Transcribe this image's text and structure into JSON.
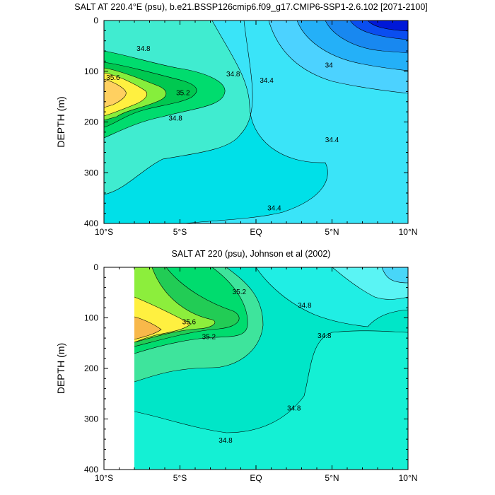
{
  "chart_data": [
    {
      "type": "contour",
      "title": "SALT AT 220.4°E (psu), b.e21.BSSP126cmip6.f09_g17.CMIP6-SSP1-2.6.102 [2071-2100]",
      "xlabel": "",
      "ylabel": "DEPTH (m)",
      "xlim": [
        -10,
        10
      ],
      "ylim": [
        400,
        0
      ],
      "x_ticks": [
        -10,
        -5,
        0,
        5,
        10
      ],
      "x_tick_labels": [
        "10°S",
        "5°S",
        "EQ",
        "5°N",
        "10°N"
      ],
      "y_ticks": [
        0,
        100,
        200,
        300,
        400
      ],
      "y_tick_labels": [
        "0",
        "100",
        "200",
        "300",
        "400"
      ],
      "contour_labels": [
        {
          "text": "34.8",
          "x": -7.4,
          "y": 55
        },
        {
          "text": "34.8",
          "x": -1.5,
          "y": 105
        },
        {
          "text": "35.6",
          "x": -9.4,
          "y": 112
        },
        {
          "text": "35.2",
          "x": -4.8,
          "y": 142
        },
        {
          "text": "34.8",
          "x": -5.3,
          "y": 192
        },
        {
          "text": "34.4",
          "x": 0.7,
          "y": 118
        },
        {
          "text": "34",
          "x": 4.8,
          "y": 88
        },
        {
          "text": "34.4",
          "x": 5.0,
          "y": 235
        },
        {
          "text": "34.4",
          "x": 1.2,
          "y": 369
        }
      ]
    },
    {
      "type": "contour",
      "title": "SALT AT 220 (psu), Johnson et al (2002)",
      "xlabel": "",
      "ylabel": "DEPTH (m)",
      "xlim": [
        -10,
        10
      ],
      "ylim": [
        400,
        0
      ],
      "x_ticks": [
        -10,
        -5,
        0,
        5,
        10
      ],
      "x_tick_labels": [
        "10°S",
        "5°S",
        "EQ",
        "5°N",
        "10°N"
      ],
      "y_ticks": [
        0,
        100,
        200,
        300,
        400
      ],
      "y_tick_labels": [
        "0",
        "100",
        "200",
        "300",
        "400"
      ],
      "contour_labels": [
        {
          "text": "35.2",
          "x": -1.1,
          "y": 48
        },
        {
          "text": "34.8",
          "x": 3.2,
          "y": 75
        },
        {
          "text": "35.6",
          "x": -4.4,
          "y": 108
        },
        {
          "text": "35.2",
          "x": -3.1,
          "y": 137
        },
        {
          "text": "34.8",
          "x": 4.5,
          "y": 135
        },
        {
          "text": "34.8",
          "x": 2.5,
          "y": 278
        },
        {
          "text": "34.8",
          "x": -2.0,
          "y": 342
        }
      ]
    }
  ]
}
